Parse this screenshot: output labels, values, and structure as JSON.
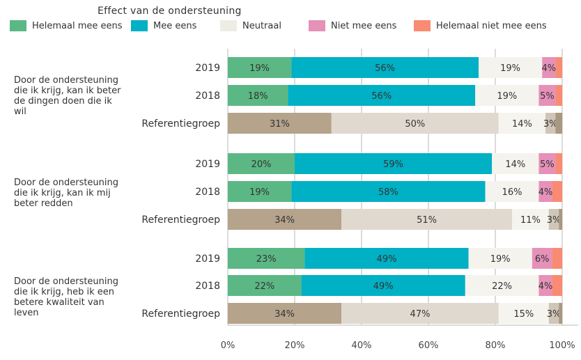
{
  "chart_data": {
    "type": "bar",
    "orientation": "horizontal",
    "stacked": "percent",
    "title": "Effect van de ondersteuning",
    "legend": {
      "placement": "top",
      "entries": [
        {
          "name": "Helemaal mee eens",
          "color": "#5bb884"
        },
        {
          "name": "Mee eens",
          "color": "#00b0c4"
        },
        {
          "name": "Neutraal",
          "color": "#f5f3ee"
        },
        {
          "name": "Niet mee eens",
          "color": "#e591b8"
        },
        {
          "name": "Helemaal niet mee eens",
          "color": "#f98b73"
        }
      ]
    },
    "reference_colors": [
      "#b5a38b",
      "#e0d9cf",
      "#f6f4ef",
      "#cfc6b8",
      "#a8987f"
    ],
    "xlabel": "",
    "ylabel": "",
    "xlim": [
      0,
      100
    ],
    "x_ticks": [
      "0%",
      "20%",
      "40%",
      "60%",
      "80%",
      "100%"
    ],
    "grid": true,
    "groups": [
      {
        "question": "Door de ondersteuning die ik krijg, kan ik beter de dingen doen die ik wil",
        "rows": [
          {
            "label": "2019",
            "reference": false,
            "values": [
              19,
              56,
              19,
              4,
              2
            ],
            "labels": [
              "19%",
              "56%",
              "19%",
              "4%",
              ""
            ]
          },
          {
            "label": "2018",
            "reference": false,
            "values": [
              18,
              56,
              19,
              5,
              2
            ],
            "labels": [
              "18%",
              "56%",
              "19%",
              "5%",
              ""
            ]
          },
          {
            "label": "Referentiegroep",
            "reference": true,
            "values": [
              31,
              50,
              14,
              3,
              2
            ],
            "labels": [
              "31%",
              "50%",
              "14%",
              "3%",
              ""
            ]
          }
        ]
      },
      {
        "question": "Door de ondersteuning die ik krijg, kan ik mij beter redden",
        "rows": [
          {
            "label": "2019",
            "reference": false,
            "values": [
              20,
              59,
              14,
              5,
              2
            ],
            "labels": [
              "20%",
              "59%",
              "14%",
              "5%",
              ""
            ]
          },
          {
            "label": "2018",
            "reference": false,
            "values": [
              19,
              58,
              16,
              4,
              3
            ],
            "labels": [
              "19%",
              "58%",
              "16%",
              "4%",
              ""
            ]
          },
          {
            "label": "Referentiegroep",
            "reference": true,
            "values": [
              34,
              51,
              11,
              3,
              1
            ],
            "labels": [
              "34%",
              "51%",
              "11%",
              "3%",
              ""
            ]
          }
        ]
      },
      {
        "question": "Door de ondersteuning die ik krijg, heb ik een betere kwaliteit van leven",
        "rows": [
          {
            "label": "2019",
            "reference": false,
            "values": [
              23,
              49,
              19,
              6,
              3
            ],
            "labels": [
              "23%",
              "49%",
              "19%",
              "6%",
              ""
            ]
          },
          {
            "label": "2018",
            "reference": false,
            "values": [
              22,
              49,
              22,
              4,
              3
            ],
            "labels": [
              "22%",
              "49%",
              "22%",
              "4%",
              ""
            ]
          },
          {
            "label": "Referentiegroep",
            "reference": true,
            "values": [
              34,
              47,
              15,
              3,
              1
            ],
            "labels": [
              "34%",
              "47%",
              "15%",
              "3%",
              ""
            ]
          }
        ]
      }
    ]
  }
}
